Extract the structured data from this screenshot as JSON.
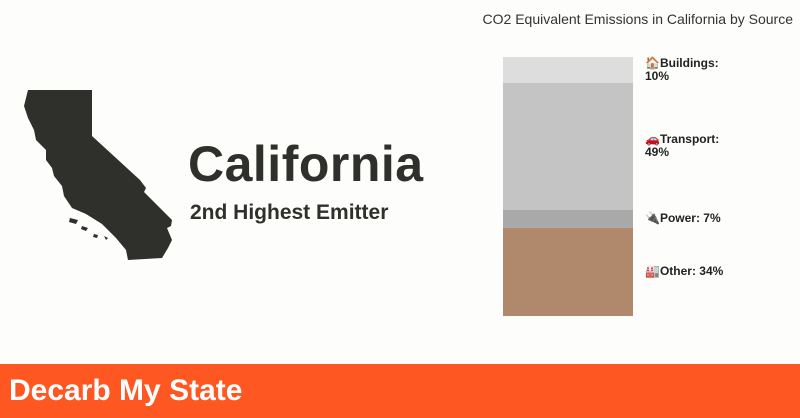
{
  "state": {
    "name": "California",
    "rank": "2nd Highest Emitter"
  },
  "footer": {
    "title": "Decarb My State"
  },
  "colors": {
    "state_shape": "#2f302c",
    "footer_bg": "#ff5722"
  },
  "chart_data": {
    "type": "bar",
    "stacked": true,
    "title": "CO2 Equivalent Emissions in California by Source",
    "unit": "%",
    "segments": [
      {
        "label": "Buildings: 10%",
        "name": "Buildings",
        "value": 10,
        "icon": "house-icon",
        "color": "#dddddd"
      },
      {
        "label": "Transport: 49%",
        "name": "Transport",
        "value": 49,
        "icon": "car-icon",
        "color": "#c4c4c4"
      },
      {
        "label": "Power: 7%",
        "name": "Power",
        "value": 7,
        "icon": "plug-icon",
        "color": "#a9a9a9"
      },
      {
        "label": "Other: 34%",
        "name": "Other",
        "value": 34,
        "icon": "factory-icon",
        "color": "#b0896c"
      }
    ]
  }
}
